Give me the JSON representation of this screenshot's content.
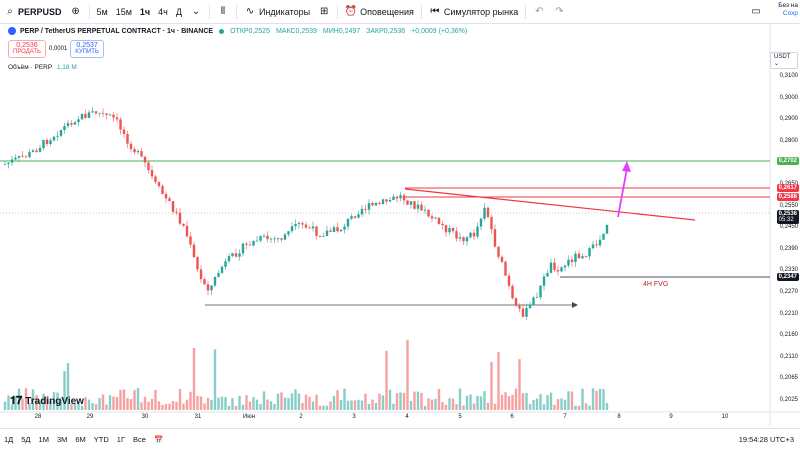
{
  "toolbar": {
    "symbol": "PERPUSD",
    "timeframes": [
      "5м",
      "15м",
      "1ч",
      "4ч",
      "Д"
    ],
    "active_timeframe": "1ч",
    "indicators_label": "Индикаторы",
    "alerts_label": "Оповещения",
    "replay_label": "Симулятор рынка",
    "corner_line1": "Без на",
    "corner_line2": "Сохр"
  },
  "legend": {
    "title": "PERP / TetherUS PERPETUAL CONTRACT · 1ч · BINANCE",
    "open": "ОТКР0,2525",
    "high": "МАКС0,2539",
    "low": "МИН0,2497",
    "close": "ЗАКР0,2536",
    "change": "+0,0009 (+0,36%)"
  },
  "trade": {
    "sell_price": "0,2536",
    "sell_label": "ПРОДАТЬ",
    "spread": "0,0001",
    "buy_price": "0,2537",
    "buy_label": "КУПИТЬ"
  },
  "volume_legend": {
    "label": "Объём · PERP",
    "value": "1,18 M"
  },
  "price_axis": {
    "currency": "USDT",
    "labels": [
      "0,3100",
      "0,3000",
      "0,2900",
      "0,2800",
      "0,2700",
      "0,2650",
      "0,2550",
      "0,2450",
      "0,2390",
      "0,2330",
      "0,2270",
      "0,2210",
      "0,2160",
      "0,2110",
      "0,2065",
      "0,2025"
    ],
    "tags": [
      {
        "text": "0,2702",
        "color": "#4caf50"
      },
      {
        "text": "0,2617",
        "color": "#f23645"
      },
      {
        "text": "0,2588",
        "color": "#f23645"
      },
      {
        "text": "0,2536",
        "color": "#131722",
        "sub": "05:32"
      },
      {
        "text": "0,2347",
        "color": "#131722"
      }
    ]
  },
  "time_axis": [
    "28",
    "29",
    "30",
    "31",
    "Июн",
    "2",
    "3",
    "4",
    "5",
    "6",
    "7",
    "8",
    "9",
    "10"
  ],
  "annotations": {
    "fvg_label": "4H FVG"
  },
  "logo_text": "TradingView",
  "bottom_bar": {
    "ranges": [
      "1Д",
      "5Д",
      "1М",
      "3М",
      "6М",
      "YTD",
      "1Г",
      "Все"
    ],
    "clock": "19:54:28 UTC+3"
  },
  "colors": {
    "up": "#26a69a",
    "down": "#ef5350",
    "green_line": "#4caf50",
    "red_line": "#f23645",
    "arrow": "#e040fb",
    "background": "#ffffff"
  }
}
